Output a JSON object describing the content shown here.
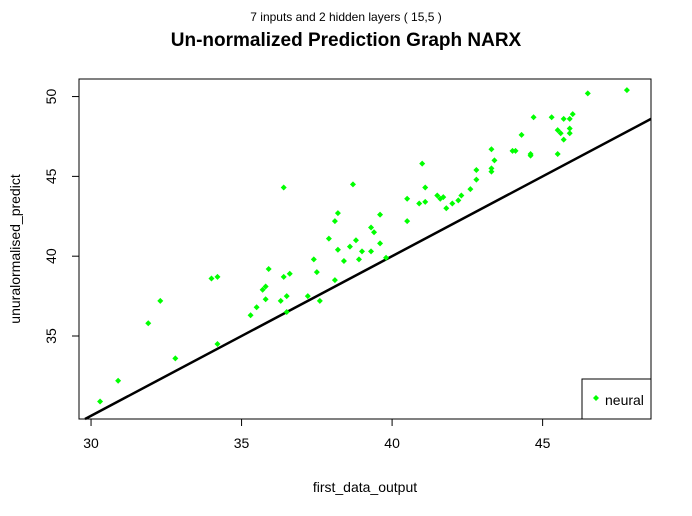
{
  "chart_data": {
    "type": "scatter",
    "subtitle": "7 inputs and 2 hidden layers ( 15,5 )",
    "title": "Un-normalized Prediction Graph NARX",
    "xlabel": "first_data_output",
    "ylabel": "unuralormalised_predict",
    "xlim": [
      29.6,
      48.6
    ],
    "ylim": [
      29.8,
      51.1
    ],
    "x_ticks": [
      30,
      35,
      40,
      45
    ],
    "y_ticks": [
      35,
      40,
      45,
      50
    ],
    "grid": false,
    "legend_position": "bottom-right",
    "colors": {
      "points": "#00ff00",
      "line": "#000000",
      "axes": "#000000"
    },
    "reference_line": {
      "type": "abline",
      "slope": 1,
      "intercept": 0
    },
    "series": [
      {
        "name": "neural",
        "points": [
          [
            30.3,
            30.9
          ],
          [
            30.9,
            32.2
          ],
          [
            31.9,
            35.8
          ],
          [
            32.3,
            37.2
          ],
          [
            32.8,
            33.6
          ],
          [
            34.0,
            38.6
          ],
          [
            34.2,
            38.7
          ],
          [
            34.2,
            34.5
          ],
          [
            35.3,
            36.3
          ],
          [
            35.5,
            36.8
          ],
          [
            35.7,
            37.9
          ],
          [
            35.8,
            38.1
          ],
          [
            35.9,
            39.2
          ],
          [
            35.8,
            37.3
          ],
          [
            36.3,
            37.2
          ],
          [
            36.4,
            44.3
          ],
          [
            36.4,
            38.7
          ],
          [
            36.5,
            36.5
          ],
          [
            36.6,
            38.9
          ],
          [
            36.5,
            37.5
          ],
          [
            37.2,
            37.5
          ],
          [
            37.4,
            39.8
          ],
          [
            37.5,
            39.0
          ],
          [
            37.6,
            37.2
          ],
          [
            37.9,
            41.1
          ],
          [
            38.1,
            38.5
          ],
          [
            38.2,
            42.7
          ],
          [
            38.2,
            40.4
          ],
          [
            38.1,
            42.2
          ],
          [
            38.4,
            39.7
          ],
          [
            38.6,
            40.6
          ],
          [
            38.7,
            44.5
          ],
          [
            38.8,
            41.0
          ],
          [
            38.9,
            39.8
          ],
          [
            39.0,
            40.3
          ],
          [
            39.3,
            40.3
          ],
          [
            39.3,
            41.8
          ],
          [
            39.4,
            41.5
          ],
          [
            39.6,
            42.6
          ],
          [
            39.6,
            40.8
          ],
          [
            39.8,
            39.9
          ],
          [
            40.5,
            42.2
          ],
          [
            40.5,
            43.6
          ],
          [
            40.9,
            43.3
          ],
          [
            41.0,
            45.8
          ],
          [
            41.1,
            43.4
          ],
          [
            41.1,
            44.3
          ],
          [
            41.5,
            43.8
          ],
          [
            41.6,
            43.6
          ],
          [
            41.7,
            43.7
          ],
          [
            41.8,
            43.0
          ],
          [
            42.0,
            43.3
          ],
          [
            42.2,
            43.5
          ],
          [
            42.3,
            43.8
          ],
          [
            42.6,
            44.2
          ],
          [
            42.8,
            44.8
          ],
          [
            42.8,
            45.4
          ],
          [
            43.3,
            45.3
          ],
          [
            43.3,
            45.5
          ],
          [
            43.3,
            46.7
          ],
          [
            43.4,
            46.0
          ],
          [
            44.0,
            46.6
          ],
          [
            44.1,
            46.6
          ],
          [
            44.3,
            47.6
          ],
          [
            44.6,
            46.4
          ],
          [
            44.6,
            46.3
          ],
          [
            44.7,
            48.7
          ],
          [
            45.3,
            48.7
          ],
          [
            45.5,
            47.9
          ],
          [
            45.5,
            46.4
          ],
          [
            45.6,
            47.7
          ],
          [
            45.7,
            47.3
          ],
          [
            45.7,
            48.6
          ],
          [
            45.9,
            48.6
          ],
          [
            45.9,
            47.7
          ],
          [
            45.9,
            48.0
          ],
          [
            46.0,
            48.9
          ],
          [
            46.5,
            50.2
          ],
          [
            47.8,
            50.4
          ]
        ]
      }
    ]
  }
}
